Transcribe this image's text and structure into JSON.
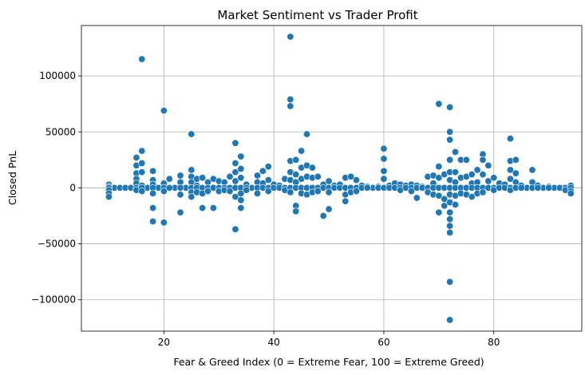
{
  "chart_data": {
    "type": "scatter",
    "title": "Market Sentiment vs Trader Profit",
    "xlabel": "Fear & Greed Index (0 = Extreme Fear, 100 = Extreme Greed)",
    "ylabel": "Closed PnL",
    "xlim": [
      5,
      96
    ],
    "ylim": [
      -128000,
      145000
    ],
    "xticks": [
      20,
      40,
      60,
      80
    ],
    "yticks": [
      -100000,
      -50000,
      0,
      50000,
      100000
    ],
    "grid": true,
    "color": "#1f77b4",
    "points": [
      [
        10,
        3000
      ],
      [
        10,
        1000
      ],
      [
        10,
        0
      ],
      [
        10,
        -2000
      ],
      [
        10,
        -5000
      ],
      [
        10,
        -8000
      ],
      [
        15,
        27000
      ],
      [
        15,
        20000
      ],
      [
        15,
        13000
      ],
      [
        15,
        8000
      ],
      [
        15,
        4000
      ],
      [
        15,
        0
      ],
      [
        15,
        -2000
      ],
      [
        16,
        115000
      ],
      [
        16,
        33000
      ],
      [
        16,
        22000
      ],
      [
        16,
        14000
      ],
      [
        16,
        2000
      ],
      [
        16,
        0
      ],
      [
        16,
        -3000
      ],
      [
        18,
        15000
      ],
      [
        18,
        7000
      ],
      [
        18,
        3000
      ],
      [
        18,
        0
      ],
      [
        18,
        -5000
      ],
      [
        18,
        -18000
      ],
      [
        18,
        -30000
      ],
      [
        20,
        69000
      ],
      [
        20,
        4000
      ],
      [
        20,
        0
      ],
      [
        20,
        -3000
      ],
      [
        20,
        -31000
      ],
      [
        21,
        8000
      ],
      [
        21,
        0
      ],
      [
        23,
        11000
      ],
      [
        23,
        5000
      ],
      [
        23,
        0
      ],
      [
        23,
        -6000
      ],
      [
        23,
        -22000
      ],
      [
        25,
        48000
      ],
      [
        25,
        16000
      ],
      [
        25,
        10000
      ],
      [
        25,
        5000
      ],
      [
        25,
        0
      ],
      [
        25,
        -4000
      ],
      [
        25,
        -8000
      ],
      [
        26,
        8000
      ],
      [
        26,
        2000
      ],
      [
        26,
        0
      ],
      [
        26,
        -4000
      ],
      [
        27,
        9000
      ],
      [
        27,
        0
      ],
      [
        27,
        -5000
      ],
      [
        27,
        -18000
      ],
      [
        28,
        5000
      ],
      [
        28,
        0
      ],
      [
        28,
        -3000
      ],
      [
        29,
        8000
      ],
      [
        29,
        0
      ],
      [
        29,
        -18000
      ],
      [
        30,
        6000
      ],
      [
        30,
        0
      ],
      [
        30,
        -3000
      ],
      [
        31,
        5000
      ],
      [
        31,
        0
      ],
      [
        31,
        -2000
      ],
      [
        32,
        10000
      ],
      [
        32,
        0
      ],
      [
        32,
        -3000
      ],
      [
        33,
        40000
      ],
      [
        33,
        22000
      ],
      [
        33,
        14000
      ],
      [
        33,
        6000
      ],
      [
        33,
        0
      ],
      [
        33,
        -8000
      ],
      [
        33,
        -37000
      ],
      [
        34,
        28000
      ],
      [
        34,
        17000
      ],
      [
        34,
        9000
      ],
      [
        34,
        0
      ],
      [
        34,
        -5000
      ],
      [
        34,
        -11000
      ],
      [
        34,
        -18000
      ],
      [
        35,
        3000
      ],
      [
        35,
        0
      ],
      [
        35,
        -2000
      ],
      [
        37,
        11000
      ],
      [
        37,
        5000
      ],
      [
        37,
        0
      ],
      [
        37,
        -5000
      ],
      [
        38,
        15000
      ],
      [
        38,
        4000
      ],
      [
        38,
        0
      ],
      [
        39,
        19000
      ],
      [
        39,
        7000
      ],
      [
        39,
        0
      ],
      [
        39,
        -3000
      ],
      [
        40,
        3000
      ],
      [
        40,
        0
      ],
      [
        41,
        2000
      ],
      [
        41,
        0
      ],
      [
        42,
        8000
      ],
      [
        42,
        0
      ],
      [
        42,
        -2000
      ],
      [
        43,
        135000
      ],
      [
        43,
        79000
      ],
      [
        43,
        73000
      ],
      [
        43,
        24000
      ],
      [
        43,
        14000
      ],
      [
        43,
        7000
      ],
      [
        43,
        0
      ],
      [
        43,
        -4000
      ],
      [
        44,
        25000
      ],
      [
        44,
        12000
      ],
      [
        44,
        5000
      ],
      [
        44,
        0
      ],
      [
        44,
        -16000
      ],
      [
        44,
        -21000
      ],
      [
        45,
        33000
      ],
      [
        45,
        18000
      ],
      [
        45,
        8000
      ],
      [
        45,
        0
      ],
      [
        45,
        -5000
      ],
      [
        46,
        48000
      ],
      [
        46,
        20000
      ],
      [
        46,
        10000
      ],
      [
        46,
        0
      ],
      [
        46,
        -6000
      ],
      [
        47,
        18000
      ],
      [
        47,
        9000
      ],
      [
        47,
        0
      ],
      [
        47,
        -4000
      ],
      [
        48,
        10000
      ],
      [
        48,
        0
      ],
      [
        48,
        -3000
      ],
      [
        49,
        3000
      ],
      [
        49,
        0
      ],
      [
        49,
        -25000
      ],
      [
        50,
        6000
      ],
      [
        50,
        0
      ],
      [
        50,
        -4000
      ],
      [
        50,
        -19000
      ],
      [
        51,
        2000
      ],
      [
        51,
        0
      ],
      [
        52,
        3000
      ],
      [
        52,
        0
      ],
      [
        53,
        9000
      ],
      [
        53,
        0
      ],
      [
        53,
        -6000
      ],
      [
        53,
        -12000
      ],
      [
        54,
        10000
      ],
      [
        54,
        0
      ],
      [
        54,
        -4000
      ],
      [
        55,
        7000
      ],
      [
        55,
        0
      ],
      [
        55,
        -3000
      ],
      [
        56,
        2000
      ],
      [
        56,
        0
      ],
      [
        57,
        1000
      ],
      [
        57,
        0
      ],
      [
        59,
        1000
      ],
      [
        59,
        0
      ],
      [
        60,
        35000
      ],
      [
        60,
        26000
      ],
      [
        60,
        15000
      ],
      [
        60,
        8000
      ],
      [
        60,
        0
      ],
      [
        61,
        2000
      ],
      [
        61,
        0
      ],
      [
        62,
        4000
      ],
      [
        62,
        0
      ],
      [
        63,
        3000
      ],
      [
        63,
        0
      ],
      [
        63,
        -2000
      ],
      [
        64,
        2000
      ],
      [
        64,
        0
      ],
      [
        65,
        3000
      ],
      [
        65,
        0
      ],
      [
        65,
        -3000
      ],
      [
        66,
        2000
      ],
      [
        66,
        0
      ],
      [
        66,
        -9000
      ],
      [
        67,
        1000
      ],
      [
        67,
        0
      ],
      [
        68,
        10000
      ],
      [
        68,
        0
      ],
      [
        68,
        -4000
      ],
      [
        69,
        11000
      ],
      [
        69,
        4000
      ],
      [
        69,
        0
      ],
      [
        69,
        -6000
      ],
      [
        70,
        75000
      ],
      [
        70,
        19000
      ],
      [
        70,
        9000
      ],
      [
        70,
        0
      ],
      [
        70,
        -7000
      ],
      [
        70,
        -22000
      ],
      [
        71,
        12000
      ],
      [
        71,
        0
      ],
      [
        71,
        -10000
      ],
      [
        71,
        -16000
      ],
      [
        72,
        72000
      ],
      [
        72,
        50000
      ],
      [
        72,
        43000
      ],
      [
        72,
        25000
      ],
      [
        72,
        14000
      ],
      [
        72,
        7000
      ],
      [
        72,
        0
      ],
      [
        72,
        -6000
      ],
      [
        72,
        -13000
      ],
      [
        72,
        -22000
      ],
      [
        72,
        -28000
      ],
      [
        72,
        -34000
      ],
      [
        72,
        -40000
      ],
      [
        72,
        -84000
      ],
      [
        72,
        -118000
      ],
      [
        73,
        32000
      ],
      [
        73,
        14000
      ],
      [
        73,
        5000
      ],
      [
        73,
        0
      ],
      [
        73,
        -7000
      ],
      [
        73,
        -15000
      ],
      [
        74,
        25000
      ],
      [
        74,
        9000
      ],
      [
        74,
        0
      ],
      [
        74,
        -5000
      ],
      [
        75,
        25000
      ],
      [
        75,
        10000
      ],
      [
        75,
        0
      ],
      [
        75,
        -6000
      ],
      [
        76,
        12000
      ],
      [
        76,
        4000
      ],
      [
        76,
        0
      ],
      [
        76,
        -8000
      ],
      [
        77,
        16000
      ],
      [
        77,
        5000
      ],
      [
        77,
        0
      ],
      [
        77,
        -5000
      ],
      [
        78,
        30000
      ],
      [
        78,
        25000
      ],
      [
        78,
        12000
      ],
      [
        78,
        0
      ],
      [
        78,
        -4000
      ],
      [
        79,
        20000
      ],
      [
        79,
        6000
      ],
      [
        79,
        0
      ],
      [
        80,
        9000
      ],
      [
        80,
        0
      ],
      [
        80,
        -2000
      ],
      [
        81,
        4000
      ],
      [
        81,
        0
      ],
      [
        82,
        3000
      ],
      [
        82,
        0
      ],
      [
        83,
        44000
      ],
      [
        83,
        24000
      ],
      [
        83,
        16000
      ],
      [
        83,
        8000
      ],
      [
        83,
        0
      ],
      [
        83,
        -2000
      ],
      [
        84,
        25000
      ],
      [
        84,
        13000
      ],
      [
        84,
        5000
      ],
      [
        84,
        0
      ],
      [
        85,
        2000
      ],
      [
        85,
        0
      ],
      [
        87,
        16000
      ],
      [
        87,
        5000
      ],
      [
        87,
        0
      ],
      [
        88,
        2000
      ],
      [
        88,
        0
      ],
      [
        90,
        1000
      ],
      [
        90,
        0
      ],
      [
        93,
        0
      ],
      [
        93,
        -2000
      ],
      [
        94,
        2000
      ],
      [
        94,
        0
      ],
      [
        94,
        -3000
      ],
      [
        94,
        -5000
      ]
    ]
  }
}
